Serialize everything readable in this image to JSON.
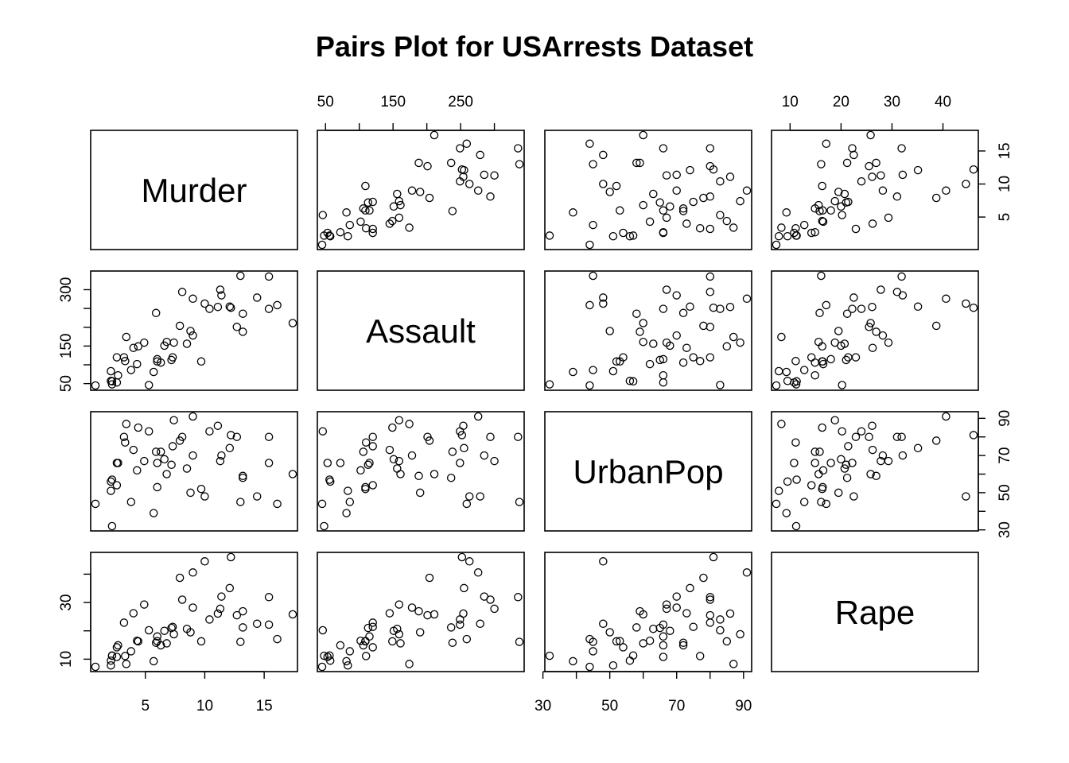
{
  "chart_data": {
    "type": "scatter",
    "title": "Pairs Plot for USArrests Dataset",
    "variables": [
      "Murder",
      "Assault",
      "UrbanPop",
      "Rape"
    ],
    "ranges": {
      "Murder": [
        0.8,
        17.4
      ],
      "Assault": [
        45,
        337
      ],
      "UrbanPop": [
        32,
        91
      ],
      "Rape": [
        7.3,
        46.0
      ]
    },
    "axis_ticks": {
      "top": {
        "Assault": [
          50,
          100,
          150,
          200,
          250,
          300
        ],
        "Rape": [
          10,
          20,
          30,
          40
        ]
      },
      "bottom": {
        "Murder": [
          5,
          10,
          15
        ],
        "UrbanPop": [
          30,
          40,
          50,
          60,
          70,
          80,
          90
        ]
      },
      "left": {
        "Assault": [
          50,
          100,
          150,
          200,
          250,
          300
        ],
        "Rape": [
          10,
          20,
          30,
          40
        ]
      },
      "right": {
        "Murder": [
          5,
          10,
          15
        ],
        "UrbanPop": [
          30,
          40,
          50,
          60,
          70,
          80,
          90
        ]
      }
    },
    "tick_labels": {
      "top": {
        "Assault": [
          "50",
          "150",
          "250"
        ],
        "Rape": [
          "10",
          "20",
          "30",
          "40"
        ]
      },
      "bottom": {
        "Murder": [
          "5",
          "10",
          "15"
        ],
        "UrbanPop": [
          "30",
          "50",
          "70",
          "90"
        ]
      },
      "left": {
        "Assault": [
          "50",
          "150",
          "300"
        ],
        "Rape": [
          "10",
          "30"
        ]
      },
      "right": {
        "Murder": [
          "5",
          "10",
          "15"
        ],
        "UrbanPop": [
          "30",
          "50",
          "70",
          "90"
        ]
      }
    },
    "data": {
      "Murder": [
        13.2,
        10.0,
        8.1,
        8.8,
        9.0,
        7.9,
        3.3,
        5.9,
        15.4,
        17.4,
        5.3,
        2.6,
        10.4,
        7.2,
        2.2,
        6.0,
        9.7,
        15.4,
        2.1,
        11.3,
        4.4,
        12.1,
        2.7,
        16.1,
        9.0,
        6.0,
        4.3,
        12.2,
        2.1,
        7.4,
        11.4,
        11.1,
        13.0,
        0.8,
        7.3,
        6.6,
        4.9,
        6.3,
        3.4,
        14.4,
        3.8,
        13.2,
        12.7,
        3.2,
        2.2,
        8.5,
        4.0,
        5.7,
        2.6,
        6.8
      ],
      "Assault": [
        236,
        263,
        294,
        190,
        276,
        204,
        110,
        238,
        335,
        211,
        46,
        120,
        249,
        113,
        56,
        115,
        109,
        249,
        83,
        300,
        149,
        255,
        72,
        259,
        178,
        109,
        102,
        252,
        57,
        159,
        285,
        254,
        337,
        45,
        120,
        151,
        159,
        106,
        174,
        279,
        86,
        188,
        201,
        120,
        48,
        156,
        145,
        81,
        53,
        161
      ],
      "UrbanPop": [
        58,
        48,
        80,
        50,
        91,
        78,
        77,
        72,
        80,
        60,
        83,
        54,
        83,
        65,
        57,
        66,
        52,
        66,
        51,
        67,
        85,
        74,
        66,
        44,
        70,
        53,
        62,
        81,
        56,
        89,
        70,
        86,
        45,
        44,
        75,
        68,
        67,
        72,
        87,
        48,
        45,
        59,
        80,
        80,
        32,
        63,
        73,
        39,
        66,
        60
      ],
      "Rape": [
        21.2,
        44.5,
        31.0,
        19.5,
        40.6,
        38.7,
        11.1,
        15.8,
        31.9,
        25.8,
        20.2,
        14.2,
        24.0,
        21.0,
        11.3,
        18.0,
        16.3,
        22.2,
        7.8,
        27.8,
        16.3,
        35.1,
        14.9,
        17.1,
        28.2,
        16.4,
        16.5,
        46.0,
        9.5,
        18.8,
        32.1,
        26.1,
        16.1,
        7.3,
        21.4,
        20.0,
        29.3,
        14.9,
        8.3,
        22.5,
        12.8,
        26.9,
        25.5,
        22.9,
        11.2,
        20.7,
        26.2,
        9.3,
        10.8,
        15.6
      ]
    }
  }
}
